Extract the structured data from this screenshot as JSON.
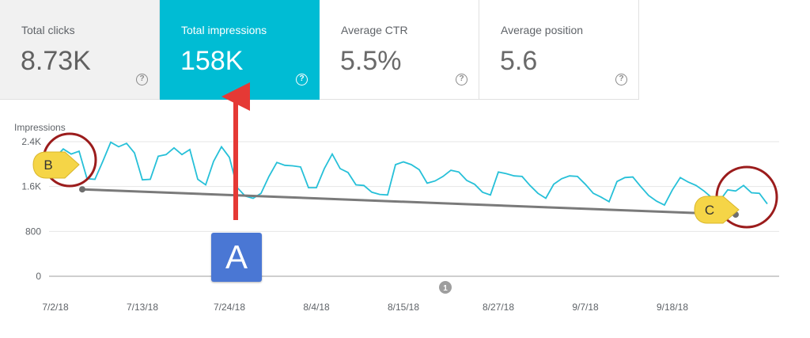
{
  "cards": [
    {
      "label": "Total clicks",
      "value": "8.73K",
      "active": false
    },
    {
      "label": "Total impressions",
      "value": "158K",
      "active": true
    },
    {
      "label": "Average CTR",
      "value": "5.5%",
      "active": false
    },
    {
      "label": "Average position",
      "value": "5.6",
      "active": false
    }
  ],
  "help_glyph": "?",
  "annotations": {
    "a": "A",
    "b": "B",
    "c": "C",
    "marker": "1"
  },
  "colors": {
    "accent": "#00bcd4",
    "line": "#26c0d8",
    "arrow": "#e53935",
    "circle": "#9b1c1c",
    "callout": "#f5d547",
    "trend": "#7a7a7a",
    "a_box": "#4a77d4"
  },
  "chart_data": {
    "type": "line",
    "ylabel": "Impressions",
    "ylim": [
      0,
      2400
    ],
    "yticks": [
      0,
      800,
      1600,
      2400
    ],
    "ytick_labels": [
      "0",
      "800",
      "1.6K",
      "2.4K"
    ],
    "grid": true,
    "x_ticks": [
      "7/2/18",
      "7/13/18",
      "7/24/18",
      "8/4/18",
      "8/15/18",
      "8/27/18",
      "9/7/18",
      "9/18/18"
    ],
    "x_start": "7/2/18",
    "x_end": "9/30/18",
    "series": [
      {
        "values": [
          2120,
          2270,
          2180,
          2230,
          1740,
          1730,
          2050,
          2390,
          2310,
          2370,
          2200,
          1720,
          1730,
          2140,
          2170,
          2290,
          2170,
          2260,
          1730,
          1630,
          2050,
          2310,
          2120,
          1580,
          1430,
          1390,
          1480,
          1780,
          2030,
          1980,
          1970,
          1950,
          1580,
          1580,
          1920,
          2180,
          1920,
          1850,
          1630,
          1620,
          1500,
          1460,
          1450,
          1990,
          2040,
          1990,
          1900,
          1660,
          1700,
          1780,
          1890,
          1860,
          1710,
          1640,
          1500,
          1450,
          1860,
          1830,
          1790,
          1780,
          1620,
          1480,
          1390,
          1640,
          1740,
          1790,
          1780,
          1640,
          1480,
          1410,
          1330,
          1690,
          1760,
          1770,
          1600,
          1440,
          1340,
          1270,
          1540,
          1760,
          1680,
          1620,
          1520,
          1400,
          1350,
          1540,
          1520,
          1620,
          1490,
          1480,
          1290
        ]
      }
    ],
    "trend_line": {
      "x": [
        "7/2/18",
        "9/26/18"
      ],
      "y": [
        1550,
        1100
      ]
    }
  }
}
